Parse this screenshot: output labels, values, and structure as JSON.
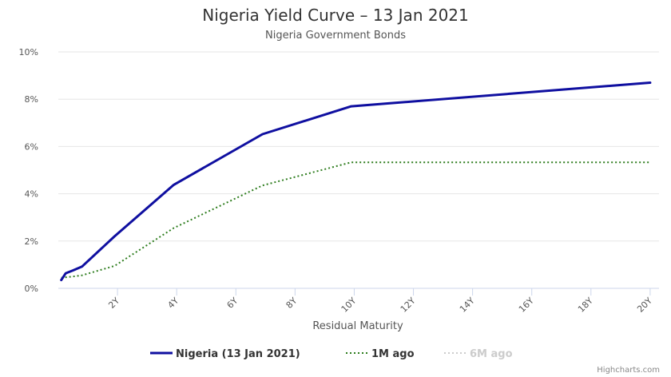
{
  "chart_data": {
    "type": "line",
    "title": "Nigeria Yield Curve – 13 Jan 2021",
    "subtitle": "Nigeria Government Bonds",
    "xlabel": "Residual Maturity",
    "ylabel": "",
    "xlim": [
      0,
      20.3
    ],
    "ylim": [
      0,
      10
    ],
    "y_ticks": [
      "0%",
      "2%",
      "4%",
      "6%",
      "8%",
      "10%"
    ],
    "y_tick_values": [
      0,
      2,
      4,
      6,
      8,
      10
    ],
    "x_ticks": [
      "2Y",
      "4Y",
      "6Y",
      "8Y",
      "10Y",
      "12Y",
      "14Y",
      "16Y",
      "18Y",
      "20Y"
    ],
    "x_tick_values": [
      2,
      4,
      6,
      8,
      10,
      12,
      14,
      16,
      18,
      20
    ],
    "grid": true,
    "legend_position": "bottom-center",
    "series": [
      {
        "name": "Nigeria (13 Jan 2021)",
        "color": "#0f0fa0",
        "style": "solid",
        "visible": true,
        "x": [
          0.1,
          0.25,
          0.5,
          0.8,
          1.9,
          3.9,
          6.9,
          9.9,
          20.0
        ],
        "y": [
          0.35,
          0.64,
          0.76,
          0.92,
          2.2,
          4.38,
          6.52,
          7.7,
          8.7
        ]
      },
      {
        "name": "1M ago",
        "color": "#2e7d1e",
        "style": "dotted",
        "visible": true,
        "x": [
          0.1,
          0.5,
          0.8,
          1.9,
          3.9,
          6.9,
          9.9,
          20.0
        ],
        "y": [
          0.45,
          0.5,
          0.55,
          0.95,
          2.55,
          4.35,
          5.33,
          5.33
        ]
      },
      {
        "name": "6M ago",
        "color": "#cccccc",
        "style": "dotted",
        "visible": false,
        "x": [],
        "y": []
      }
    ]
  },
  "credits": "Highcharts.com"
}
